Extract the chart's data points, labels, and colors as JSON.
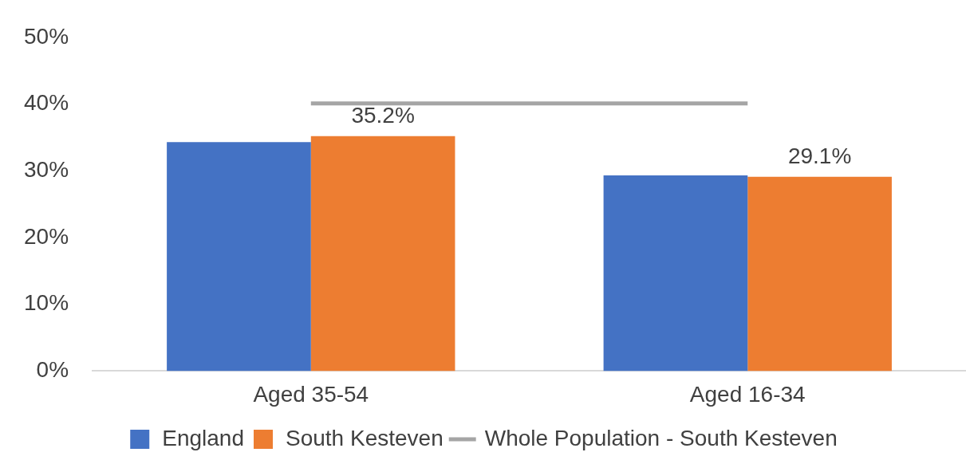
{
  "chart_data": {
    "type": "bar",
    "categories": [
      "Aged 35-54",
      "Aged 16-34"
    ],
    "series": [
      {
        "name": "England",
        "color": "#4472c4",
        "values": [
          34.3,
          29.3
        ]
      },
      {
        "name": "South Kesteven",
        "color": "#ed7d31",
        "values": [
          35.2,
          29.1
        ],
        "value_labels": [
          "35.2%",
          "29.1%"
        ]
      },
      {
        "name": "Whole Population - South Kesteven",
        "type": "line",
        "color": "#a5a5a5",
        "values": [
          40.1,
          40.1
        ],
        "marker": "none"
      }
    ],
    "ylim": [
      0,
      50
    ],
    "yticks": [
      {
        "value": 0,
        "label": "0%"
      },
      {
        "value": 10,
        "label": "10%"
      },
      {
        "value": 20,
        "label": "20%"
      },
      {
        "value": 30,
        "label": "30%"
      },
      {
        "value": 40,
        "label": "40%"
      },
      {
        "value": 50,
        "label": "50%"
      }
    ],
    "grid": false,
    "legend": "bottom"
  }
}
